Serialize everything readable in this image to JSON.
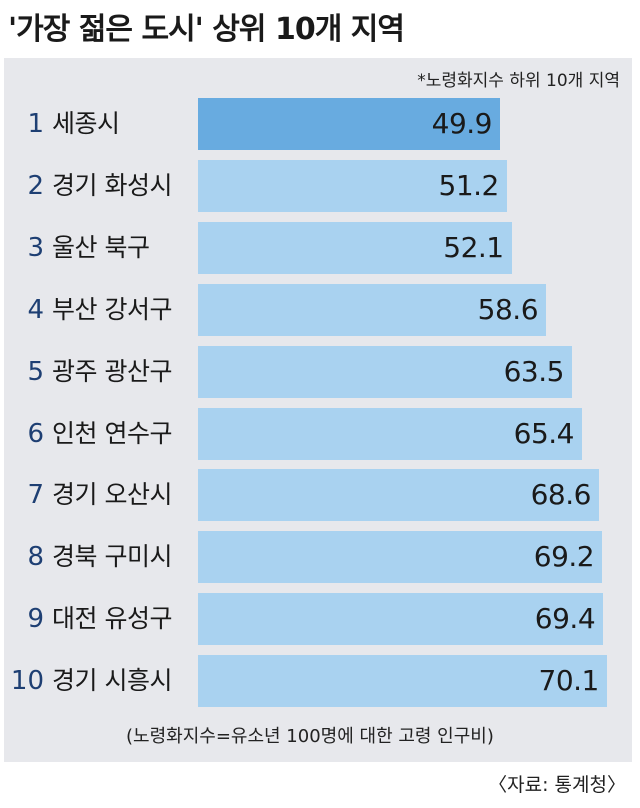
{
  "title": "'가장 젊은 도시' 상위 10개 지역",
  "note": "*노령화지수 하위 10개 지역",
  "footnote": "(노령화지수=유소년 100명에 대한 고령 인구비)",
  "source": "〈자료: 통계청〉",
  "colors": {
    "first_bar": "#68abe0",
    "bar": "#a9d2f0",
    "panel": "#e7e8ec",
    "rank": "#1e3f73"
  },
  "chart_data": {
    "type": "bar",
    "orientation": "horizontal",
    "title": "'가장 젊은 도시' 상위 10개 지역",
    "ranks": [
      "1",
      "2",
      "3",
      "4",
      "5",
      "6",
      "7",
      "8",
      "9",
      "10"
    ],
    "categories": [
      "세종시",
      "경기 화성시",
      "울산 북구",
      "부산 강서구",
      "광주 광산구",
      "인천 연수구",
      "경기 오산시",
      "경북 구미시",
      "대전 유성구",
      "경기 시흥시"
    ],
    "values": [
      49.9,
      51.2,
      52.1,
      58.6,
      63.5,
      65.4,
      68.6,
      69.2,
      69.4,
      70.1
    ],
    "value_labels": [
      "49.9",
      "51.2",
      "52.1",
      "58.6",
      "63.5",
      "65.4",
      "68.6",
      "69.2",
      "69.4",
      "70.1"
    ],
    "xlabel": "",
    "ylabel": ""
  }
}
